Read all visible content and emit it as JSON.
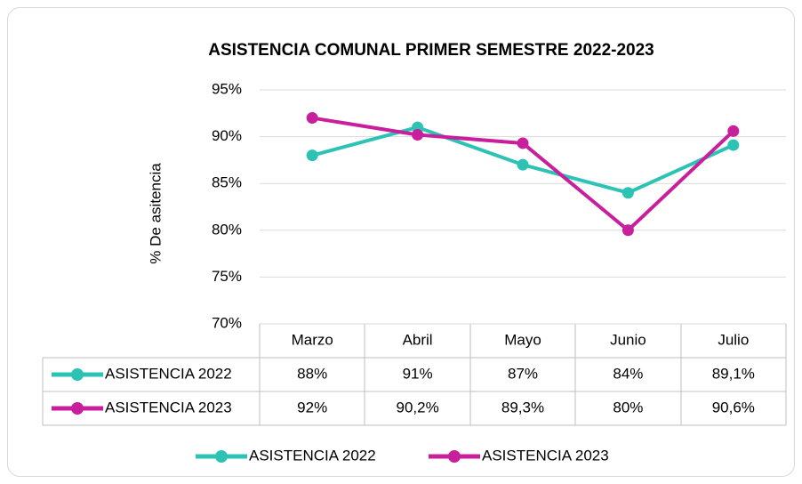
{
  "chart_data": {
    "type": "line",
    "title": "ASISTENCIA COMUNAL PRIMER SEMESTRE 2022-2023",
    "y_label": "% De asitencia",
    "categories": [
      "Marzo",
      "Abril",
      "Mayo",
      "Junio",
      "Julio"
    ],
    "series": [
      {
        "name": "ASISTENCIA 2022",
        "color": "#2cc3b5",
        "values": [
          88,
          91,
          87,
          84,
          89.1
        ],
        "value_labels": [
          "88%",
          "91%",
          "87%",
          "84%",
          "89,1%"
        ]
      },
      {
        "name": "ASISTENCIA 2023",
        "color": "#c81f9d",
        "values": [
          92,
          90.2,
          89.3,
          80,
          90.6
        ],
        "value_labels": [
          "92%",
          "90,2%",
          "89,3%",
          "80%",
          "90,6%"
        ]
      }
    ],
    "ylim": [
      70,
      95
    ],
    "yticks": [
      {
        "value": 70,
        "label": "70%"
      },
      {
        "value": 75,
        "label": "75%"
      },
      {
        "value": 80,
        "label": "80%"
      },
      {
        "value": 85,
        "label": "85%"
      },
      {
        "value": 90,
        "label": "90%"
      },
      {
        "value": 95,
        "label": "95%"
      }
    ],
    "grid": true,
    "legend": "bottom"
  }
}
